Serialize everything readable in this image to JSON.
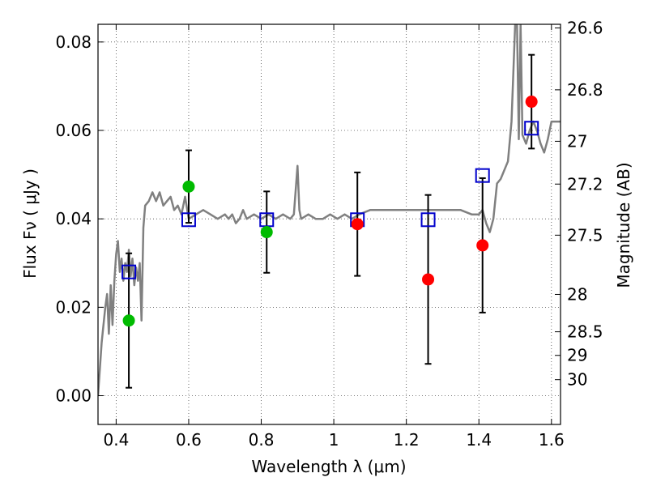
{
  "chart_data": {
    "type": "scatter",
    "xlabel": "Wavelength  λ (μm)",
    "ylabel": "Flux  Fν  ( μJy )",
    "y2label": "Magnitude (AB)",
    "xlim": [
      0.35,
      1.625
    ],
    "ylim": [
      -0.0065,
      0.084
    ],
    "grid": true,
    "x_ticks": [
      0.4,
      0.6,
      0.8,
      1.0,
      1.2,
      1.4,
      1.6
    ],
    "x_tick_labels": [
      "0.4",
      "0.6",
      "0.8",
      "1",
      "1.2",
      "1.4",
      "1.6"
    ],
    "y_ticks": [
      0.0,
      0.02,
      0.04,
      0.06,
      0.08
    ],
    "y_tick_labels": [
      "0.00",
      "0.02",
      "0.04",
      "0.06",
      "0.08"
    ],
    "mag_ticks": [
      26.6,
      26.8,
      27,
      27.2,
      27.5,
      28,
      28.5,
      29,
      30
    ],
    "mag_tick_labels": [
      "26.6",
      "26.8",
      "27",
      "27.2",
      "27.5",
      "28",
      "28.5",
      "29",
      "30"
    ],
    "series": [
      {
        "kind": "line",
        "color": "#808080",
        "x": [
          0.35,
          0.36,
          0.37,
          0.375,
          0.38,
          0.385,
          0.39,
          0.395,
          0.4,
          0.405,
          0.41,
          0.415,
          0.42,
          0.425,
          0.43,
          0.435,
          0.44,
          0.445,
          0.45,
          0.455,
          0.46,
          0.465,
          0.47,
          0.475,
          0.48,
          0.49,
          0.5,
          0.51,
          0.52,
          0.53,
          0.54,
          0.55,
          0.56,
          0.57,
          0.58,
          0.59,
          0.6,
          0.62,
          0.64,
          0.66,
          0.68,
          0.7,
          0.71,
          0.72,
          0.73,
          0.74,
          0.75,
          0.76,
          0.78,
          0.8,
          0.82,
          0.84,
          0.86,
          0.88,
          0.89,
          0.9,
          0.905,
          0.91,
          0.93,
          0.95,
          0.97,
          0.99,
          1.01,
          1.03,
          1.05,
          1.07,
          1.1,
          1.15,
          1.2,
          1.25,
          1.3,
          1.35,
          1.38,
          1.4,
          1.41,
          1.42,
          1.43,
          1.44,
          1.45,
          1.46,
          1.48,
          1.49,
          1.5,
          1.505,
          1.51,
          1.515,
          1.52,
          1.53,
          1.54,
          1.55,
          1.56,
          1.57,
          1.58,
          1.59,
          1.6,
          1.625
        ],
        "y": [
          0.0,
          0.012,
          0.02,
          0.023,
          0.014,
          0.025,
          0.016,
          0.026,
          0.032,
          0.035,
          0.028,
          0.031,
          0.026,
          0.03,
          0.028,
          0.033,
          0.027,
          0.031,
          0.025,
          0.029,
          0.026,
          0.03,
          0.017,
          0.038,
          0.043,
          0.044,
          0.046,
          0.044,
          0.046,
          0.043,
          0.044,
          0.045,
          0.042,
          0.043,
          0.041,
          0.045,
          0.04,
          0.041,
          0.042,
          0.041,
          0.04,
          0.041,
          0.04,
          0.041,
          0.039,
          0.04,
          0.042,
          0.04,
          0.041,
          0.04,
          0.041,
          0.04,
          0.041,
          0.04,
          0.041,
          0.052,
          0.042,
          0.04,
          0.041,
          0.04,
          0.04,
          0.041,
          0.04,
          0.041,
          0.04,
          0.041,
          0.042,
          0.042,
          0.042,
          0.042,
          0.042,
          0.042,
          0.041,
          0.041,
          0.042,
          0.039,
          0.037,
          0.04,
          0.048,
          0.049,
          0.053,
          0.062,
          0.084,
          0.084,
          0.058,
          0.084,
          0.059,
          0.057,
          0.06,
          0.062,
          0.06,
          0.057,
          0.055,
          0.058,
          0.062,
          0.062
        ]
      },
      {
        "kind": "errorbar",
        "color": "#000000",
        "x": [
          0.435,
          0.6,
          0.815,
          1.065,
          1.26,
          1.41,
          1.545
        ],
        "y": [
          0.017,
          0.0473,
          0.037,
          0.0388,
          0.0263,
          0.034,
          0.0665
        ],
        "yerr": [
          0.0152,
          0.0082,
          0.0092,
          0.0117,
          0.0191,
          0.0152,
          0.0106
        ]
      },
      {
        "kind": "markers",
        "marker": "open-square",
        "color": "#0000cc",
        "x": [
          0.435,
          0.6,
          0.815,
          1.065,
          1.26,
          1.41,
          1.545
        ],
        "y": [
          0.028,
          0.0398,
          0.0398,
          0.0398,
          0.0398,
          0.0498,
          0.0605
        ]
      },
      {
        "kind": "markers",
        "marker": "filled-circle",
        "color": "#00bb00",
        "x": [
          0.435,
          0.6,
          0.815
        ],
        "y": [
          0.017,
          0.0473,
          0.037
        ]
      },
      {
        "kind": "markers",
        "marker": "filled-circle",
        "color": "#ff0000",
        "x": [
          1.065,
          1.26,
          1.41,
          1.545
        ],
        "y": [
          0.0388,
          0.0263,
          0.034,
          0.0665
        ]
      }
    ]
  }
}
